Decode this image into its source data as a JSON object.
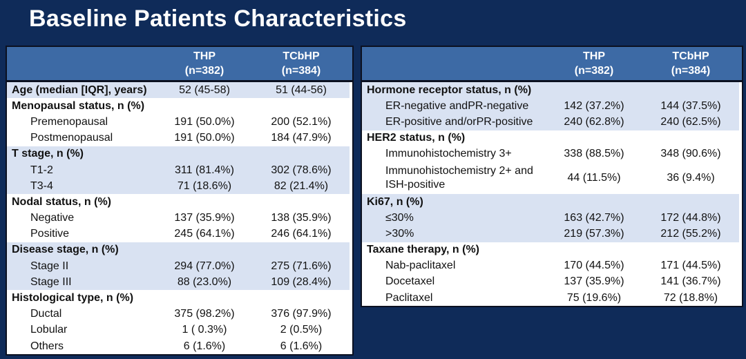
{
  "page": {
    "title": "Baseline Patients Characteristics"
  },
  "colors": {
    "background": "#0F2B59",
    "title_text": "#FFFFFF",
    "table_header_bg": "#3D6AA5",
    "header_text": "#FFFFFF",
    "row_band_light": "#D9E2F2",
    "row_band_white": "#FFFFFF",
    "table_border": "#0B1020",
    "body_text": "#111111"
  },
  "tables": [
    {
      "name": "patient-characteristics-left",
      "header": {
        "thp": {
          "label": "THP",
          "n": "(n=382)"
        },
        "tcbhp": {
          "label": "TCbHP",
          "n": "(n=384)"
        }
      },
      "rows": [
        {
          "label": "Age (median [IQR], years)",
          "thp": "52 (45-58)",
          "tcbhp": "51 (44-56)",
          "bold": true,
          "indent": false,
          "band": "light"
        },
        {
          "label": "Menopausal status, n (%)",
          "thp": "",
          "tcbhp": "",
          "bold": true,
          "indent": false,
          "band": "white"
        },
        {
          "label": "Premenopausal",
          "thp": "191 (50.0%)",
          "tcbhp": "200 (52.1%)",
          "bold": false,
          "indent": true,
          "band": "white"
        },
        {
          "label": "Postmenopausal",
          "thp": "191 (50.0%)",
          "tcbhp": "184 (47.9%)",
          "bold": false,
          "indent": true,
          "band": "white"
        },
        {
          "label": "T stage, n (%)",
          "thp": "",
          "tcbhp": "",
          "bold": true,
          "indent": false,
          "band": "light"
        },
        {
          "label": "T1-2",
          "thp": "311 (81.4%)",
          "tcbhp": "302 (78.6%)",
          "bold": false,
          "indent": true,
          "band": "light"
        },
        {
          "label": "T3-4",
          "thp": "71 (18.6%)",
          "tcbhp": "82 (21.4%)",
          "bold": false,
          "indent": true,
          "band": "light"
        },
        {
          "label": "Nodal status, n (%)",
          "thp": "",
          "tcbhp": "",
          "bold": true,
          "indent": false,
          "band": "white"
        },
        {
          "label": "Negative",
          "thp": "137 (35.9%)",
          "tcbhp": "138 (35.9%)",
          "bold": false,
          "indent": true,
          "band": "white"
        },
        {
          "label": "Positive",
          "thp": "245 (64.1%)",
          "tcbhp": "246 (64.1%)",
          "bold": false,
          "indent": true,
          "band": "white"
        },
        {
          "label": "Disease stage, n (%)",
          "thp": "",
          "tcbhp": "",
          "bold": true,
          "indent": false,
          "band": "light"
        },
        {
          "label": "Stage II",
          "thp": "294 (77.0%)",
          "tcbhp": "275 (71.6%)",
          "bold": false,
          "indent": true,
          "band": "light"
        },
        {
          "label": "Stage III",
          "thp": "88 (23.0%)",
          "tcbhp": "109 (28.4%)",
          "bold": false,
          "indent": true,
          "band": "light"
        },
        {
          "label": "Histological type, n (%)",
          "thp": "",
          "tcbhp": "",
          "bold": true,
          "indent": false,
          "band": "white"
        },
        {
          "label": "Ductal",
          "thp": "375 (98.2%)",
          "tcbhp": "376 (97.9%)",
          "bold": false,
          "indent": true,
          "band": "white"
        },
        {
          "label": "Lobular",
          "thp": "1 ( 0.3%)",
          "tcbhp": "2 (0.5%)",
          "bold": false,
          "indent": true,
          "band": "white"
        },
        {
          "label": "Others",
          "thp": "6 (1.6%)",
          "tcbhp": "6 (1.6%)",
          "bold": false,
          "indent": true,
          "band": "white"
        }
      ]
    },
    {
      "name": "patient-characteristics-right",
      "header": {
        "thp": {
          "label": "THP",
          "n": "(n=382)"
        },
        "tcbhp": {
          "label": "TCbHP",
          "n": "(n=384)"
        }
      },
      "rows": [
        {
          "label": "Hormone receptor status, n (%)",
          "thp": "",
          "tcbhp": "",
          "bold": true,
          "indent": false,
          "band": "light"
        },
        {
          "label": "ER-negative andPR-negative",
          "thp": "142 (37.2%)",
          "tcbhp": "144 (37.5%)",
          "bold": false,
          "indent": true,
          "band": "light"
        },
        {
          "label": "ER-positive and/orPR-positive",
          "thp": "240 (62.8%)",
          "tcbhp": "240 (62.5%)",
          "bold": false,
          "indent": true,
          "band": "light"
        },
        {
          "label": "HER2 status, n (%)",
          "thp": "",
          "tcbhp": "",
          "bold": true,
          "indent": false,
          "band": "white"
        },
        {
          "label": "Immunohistochemistry 3+",
          "thp": "338 (88.5%)",
          "tcbhp": "348 (90.6%)",
          "bold": false,
          "indent": true,
          "band": "white"
        },
        {
          "label": "Immunohistochemistry 2+ and ISH-positive",
          "thp": "44 (11.5%)",
          "tcbhp": "36 (9.4%)",
          "bold": false,
          "indent": true,
          "band": "white",
          "lines": 2
        },
        {
          "label": "Ki67, n (%)",
          "thp": "",
          "tcbhp": "",
          "bold": true,
          "indent": false,
          "band": "light"
        },
        {
          "label": "≤30%",
          "thp": "163 (42.7%)",
          "tcbhp": "172 (44.8%)",
          "bold": false,
          "indent": true,
          "band": "light"
        },
        {
          "label": ">30%",
          "thp": "219 (57.3%)",
          "tcbhp": "212 (55.2%)",
          "bold": false,
          "indent": true,
          "band": "light"
        },
        {
          "label": "Taxane therapy, n (%)",
          "thp": "",
          "tcbhp": "",
          "bold": true,
          "indent": false,
          "band": "white"
        },
        {
          "label": "Nab-paclitaxel",
          "thp": "170 (44.5%)",
          "tcbhp": "171 (44.5%)",
          "bold": false,
          "indent": true,
          "band": "white"
        },
        {
          "label": "Docetaxel",
          "thp": "137 (35.9%)",
          "tcbhp": "141 (36.7%)",
          "bold": false,
          "indent": true,
          "band": "white"
        },
        {
          "label": "Paclitaxel",
          "thp": "75 (19.6%)",
          "tcbhp": "72 (18.8%)",
          "bold": false,
          "indent": true,
          "band": "white"
        }
      ]
    }
  ]
}
